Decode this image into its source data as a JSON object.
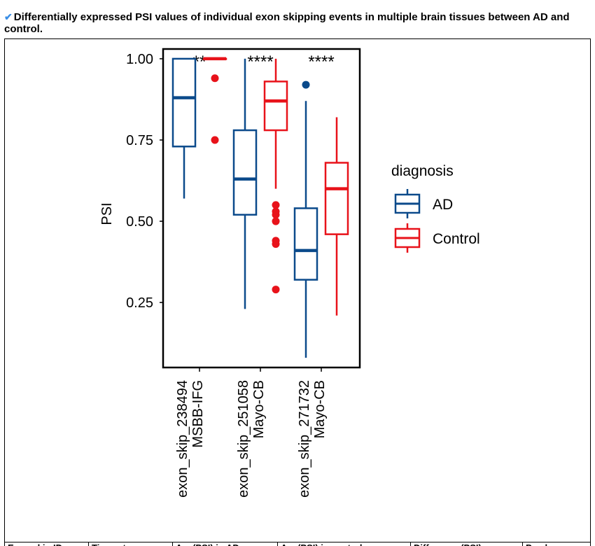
{
  "caption": {
    "icon": "checkmark-icon",
    "text": "Differentially expressed PSI values of individual exon skipping events in multiple brain tissues between AD and control."
  },
  "colors": {
    "AD": "#0b4a8b",
    "Control": "#e8121a"
  },
  "chart_data": {
    "type": "box",
    "title": "",
    "xlabel": "",
    "ylabel": "PSI",
    "ylim": [
      0.05,
      1.03
    ],
    "yticks": [
      1.0,
      0.75,
      0.5,
      0.25
    ],
    "ytick_labels": [
      "1.00",
      "0.75",
      "0.50",
      "0.25"
    ],
    "categories": [
      {
        "line1": "exon_skip_238494",
        "line2": "MSBB-IFG",
        "significance": "**"
      },
      {
        "line1": "exon_skip_251058",
        "line2": "Mayo-CB",
        "significance": "****"
      },
      {
        "line1": "exon_skip_271732",
        "line2": "Mayo-CB",
        "significance": "****"
      }
    ],
    "legend": {
      "title": "diagnosis",
      "position": "right",
      "entries": [
        "AD",
        "Control"
      ]
    },
    "series": [
      {
        "name": "AD",
        "boxes": [
          {
            "min": 0.57,
            "q1": 0.73,
            "median": 0.88,
            "q3": 1.0,
            "max": 1.0,
            "outliers": []
          },
          {
            "min": 0.23,
            "q1": 0.52,
            "median": 0.63,
            "q3": 0.78,
            "max": 1.0,
            "outliers": []
          },
          {
            "min": 0.08,
            "q1": 0.32,
            "median": 0.41,
            "q3": 0.54,
            "max": 0.87,
            "outliers": [
              0.92
            ]
          }
        ]
      },
      {
        "name": "Control",
        "boxes": [
          {
            "min": 1.0,
            "q1": 1.0,
            "median": 1.0,
            "q3": 1.0,
            "max": 1.0,
            "outliers": [
              0.94,
              0.75
            ]
          },
          {
            "min": 0.6,
            "q1": 0.78,
            "median": 0.87,
            "q3": 0.93,
            "max": 1.0,
            "outliers": [
              0.55,
              0.53,
              0.52,
              0.5,
              0.44,
              0.43,
              0.29
            ]
          },
          {
            "min": 0.21,
            "q1": 0.46,
            "median": 0.6,
            "q3": 0.68,
            "max": 0.82,
            "outliers": []
          }
        ]
      }
    ]
  },
  "table": {
    "headers": [
      "Exon skip ID",
      "Tissue type",
      "Avg(PSI) in AD",
      "Avg(PSI) in control",
      "Difference (PSI)",
      "P-value"
    ]
  }
}
